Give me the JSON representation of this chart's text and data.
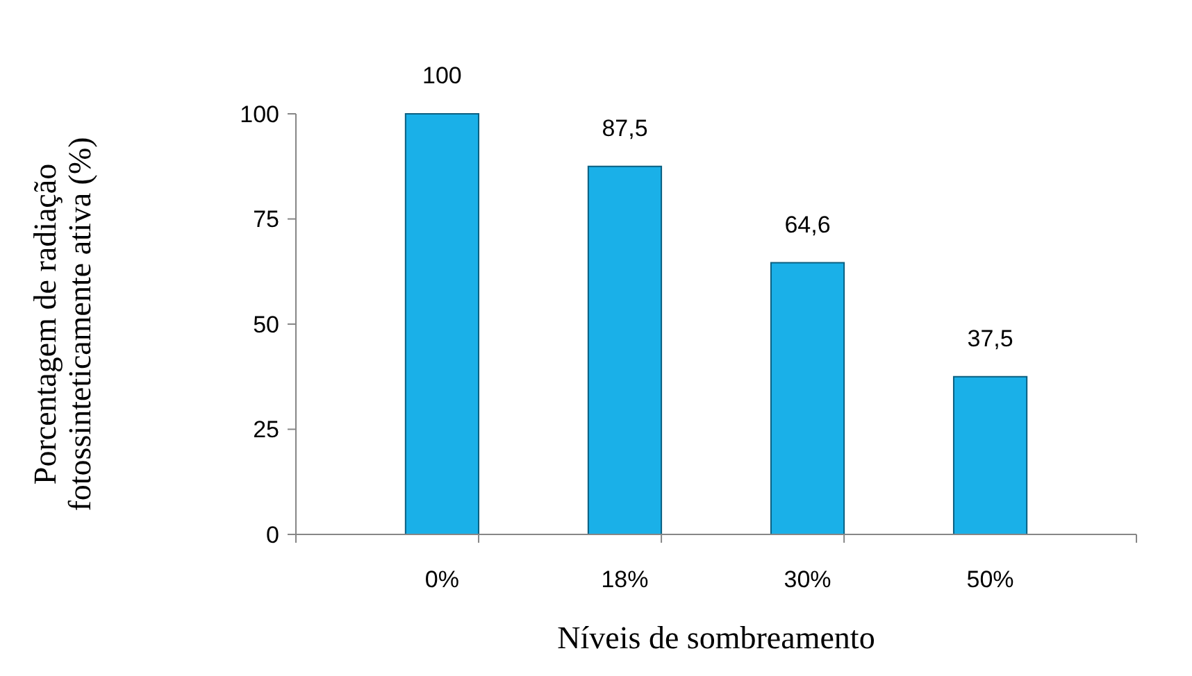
{
  "chart_data": {
    "type": "bar",
    "xlabel": "Níveis de sombreamento",
    "ylabel": "Porcentagem de radiação fotossinteticamente ativa (%)",
    "categories": [
      "0%",
      "18%",
      "30%",
      "50%"
    ],
    "values": [
      100,
      87.5,
      64.6,
      37.5
    ],
    "value_labels": [
      "100",
      "87,5",
      "64,6",
      "37,5"
    ],
    "color": "#1ab0e8",
    "ylim": [
      0,
      100
    ],
    "yticks": [
      0,
      25,
      50,
      75,
      100
    ],
    "grid": false
  }
}
